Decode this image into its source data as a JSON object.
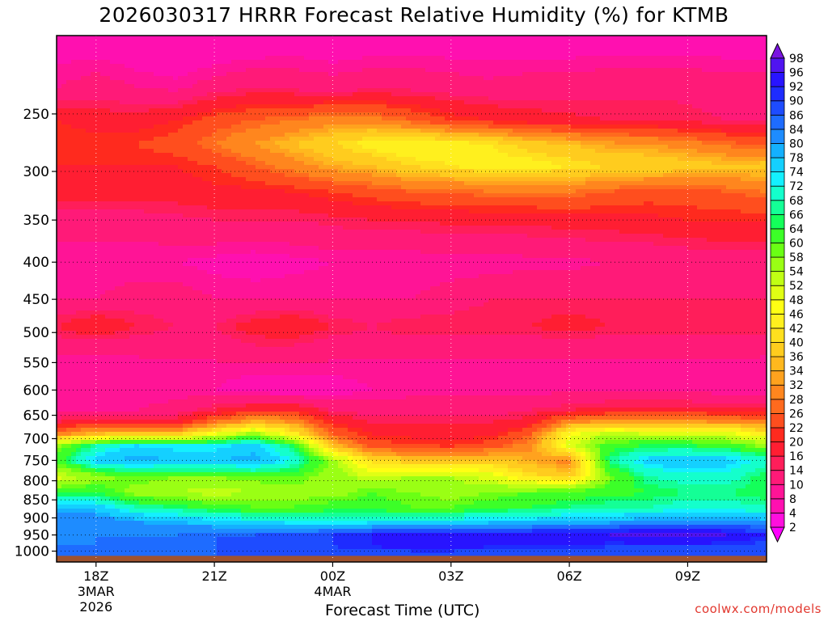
{
  "chart_data": {
    "type": "heatmap",
    "title": "2026030317 HRRR Forecast Relative Humidity (%) for KTMB",
    "xlabel": "Forecast Time (UTC)",
    "ylabel": "",
    "x_ticks": [
      {
        "hour": 18,
        "label": "18Z",
        "sub1": "3MAR",
        "sub2": "2026"
      },
      {
        "hour": 21,
        "label": "21Z",
        "sub1": "",
        "sub2": ""
      },
      {
        "hour": 24,
        "label": "00Z",
        "sub1": "4MAR",
        "sub2": ""
      },
      {
        "hour": 27,
        "label": "03Z",
        "sub1": "",
        "sub2": ""
      },
      {
        "hour": 30,
        "label": "06Z",
        "sub1": "",
        "sub2": ""
      },
      {
        "hour": 33,
        "label": "09Z",
        "sub1": "",
        "sub2": ""
      }
    ],
    "xlim": [
      17,
      35
    ],
    "y_axis": "pressure (hPa), log scale, inverted",
    "ylim": [
      1035,
      195
    ],
    "y_ticks": [
      250,
      300,
      350,
      400,
      450,
      500,
      550,
      600,
      650,
      700,
      750,
      800,
      850,
      900,
      950,
      1000
    ],
    "grid": true,
    "colorbar": {
      "levels": [
        2,
        4,
        8,
        10,
        14,
        16,
        20,
        22,
        26,
        28,
        32,
        34,
        36,
        40,
        42,
        46,
        48,
        52,
        54,
        58,
        60,
        64,
        66,
        68,
        72,
        74,
        78,
        80,
        84,
        86,
        90,
        92,
        96,
        98
      ],
      "colors": [
        "#ff00ff",
        "#ff0fdd",
        "#ff10b0",
        "#ff1496",
        "#ff1a78",
        "#ff1e5a",
        "#ff1e32",
        "#ff2a1e",
        "#ff4e1e",
        "#ff6a1e",
        "#ff861e",
        "#ffa21e",
        "#ffb81e",
        "#ffcc1e",
        "#ffe01e",
        "#fff01e",
        "#ffff14",
        "#e0ff14",
        "#c0ff14",
        "#9aff14",
        "#6aff14",
        "#3cff28",
        "#14ff5a",
        "#14ff96",
        "#14ffcc",
        "#14f0ff",
        "#14d0ff",
        "#14b0ff",
        "#1e8cff",
        "#1e6cff",
        "#1e4cff",
        "#1e2cff",
        "#2814ff",
        "#5014f0",
        "#7a14e0"
      ]
    },
    "profiles": [
      {
        "pressure": 200,
        "rh": [
          6,
          6,
          5,
          4,
          4,
          5,
          6,
          5,
          6,
          6,
          6,
          6,
          6,
          6,
          6,
          6,
          6,
          6,
          6
        ]
      },
      {
        "pressure": 230,
        "rh": [
          10,
          12,
          10,
          9,
          12,
          14,
          13,
          12,
          13,
          13,
          12,
          11,
          12,
          12,
          13,
          13,
          13,
          12,
          12
        ]
      },
      {
        "pressure": 255,
        "rh": [
          20,
          18,
          18,
          20,
          24,
          26,
          28,
          30,
          30,
          26,
          22,
          20,
          18,
          17,
          16,
          16,
          15,
          14,
          14
        ]
      },
      {
        "pressure": 275,
        "rh": [
          22,
          22,
          22,
          24,
          28,
          32,
          36,
          40,
          44,
          46,
          44,
          42,
          38,
          36,
          33,
          32,
          30,
          27,
          25
        ]
      },
      {
        "pressure": 295,
        "rh": [
          20,
          20,
          20,
          20,
          22,
          26,
          30,
          34,
          36,
          40,
          42,
          44,
          44,
          42,
          40,
          40,
          38,
          37,
          38
        ]
      },
      {
        "pressure": 320,
        "rh": [
          18,
          18,
          18,
          18,
          19,
          19,
          20,
          22,
          24,
          26,
          26,
          28,
          28,
          28,
          26,
          24,
          24,
          26,
          28
        ]
      },
      {
        "pressure": 350,
        "rh": [
          12,
          12,
          12,
          13,
          14,
          14,
          14,
          15,
          16,
          16,
          17,
          17,
          17,
          18,
          18,
          19,
          20,
          20,
          20
        ]
      },
      {
        "pressure": 400,
        "rh": [
          8,
          8,
          8,
          8,
          7,
          6,
          7,
          8,
          8,
          8,
          8,
          8,
          9,
          9,
          10,
          10,
          11,
          12,
          12
        ]
      },
      {
        "pressure": 450,
        "rh": [
          10,
          10,
          12,
          12,
          10,
          10,
          10,
          10,
          10,
          10,
          12,
          14,
          14,
          14,
          14,
          14,
          14,
          14,
          14
        ]
      },
      {
        "pressure": 490,
        "rh": [
          16,
          20,
          16,
          14,
          14,
          18,
          20,
          16,
          14,
          16,
          16,
          16,
          16,
          18,
          16,
          16,
          16,
          16,
          16
        ]
      },
      {
        "pressure": 520,
        "rh": [
          12,
          12,
          12,
          12,
          12,
          14,
          14,
          12,
          12,
          12,
          12,
          12,
          12,
          12,
          12,
          12,
          12,
          12,
          12
        ]
      },
      {
        "pressure": 560,
        "rh": [
          8,
          8,
          8,
          9,
          9,
          9,
          9,
          9,
          9,
          9,
          9,
          9,
          9,
          9,
          9,
          9,
          9,
          9,
          8
        ]
      },
      {
        "pressure": 600,
        "rh": [
          9,
          9,
          8,
          8,
          8,
          6,
          5,
          6,
          8,
          9,
          9,
          9,
          9,
          9,
          9,
          9,
          9,
          8,
          8
        ]
      },
      {
        "pressure": 640,
        "rh": [
          10,
          10,
          10,
          12,
          16,
          20,
          20,
          14,
          12,
          12,
          12,
          12,
          14,
          16,
          18,
          18,
          18,
          18,
          18
        ]
      },
      {
        "pressure": 665,
        "rh": [
          16,
          20,
          18,
          18,
          28,
          36,
          32,
          20,
          16,
          16,
          16,
          16,
          18,
          32,
          34,
          34,
          34,
          32,
          30
        ]
      },
      {
        "pressure": 690,
        "rh": [
          30,
          36,
          38,
          38,
          48,
          56,
          44,
          26,
          20,
          19,
          18,
          19,
          26,
          46,
          54,
          52,
          52,
          50,
          44
        ]
      },
      {
        "pressure": 715,
        "rh": [
          56,
          68,
          74,
          72,
          72,
          76,
          64,
          36,
          24,
          22,
          21,
          24,
          30,
          50,
          62,
          64,
          64,
          62,
          56
        ]
      },
      {
        "pressure": 750,
        "rh": [
          62,
          76,
          80,
          78,
          78,
          80,
          72,
          56,
          40,
          38,
          38,
          38,
          34,
          30,
          66,
          76,
          78,
          76,
          70
        ]
      },
      {
        "pressure": 790,
        "rh": [
          50,
          56,
          60,
          58,
          58,
          60,
          60,
          56,
          52,
          54,
          54,
          50,
          42,
          38,
          58,
          68,
          70,
          70,
          64
        ]
      },
      {
        "pressure": 830,
        "rh": [
          62,
          64,
          56,
          54,
          52,
          54,
          56,
          56,
          60,
          58,
          56,
          58,
          60,
          62,
          62,
          64,
          66,
          66,
          64
        ]
      },
      {
        "pressure": 870,
        "rh": [
          78,
          76,
          68,
          66,
          62,
          60,
          60,
          62,
          62,
          60,
          60,
          62,
          64,
          66,
          68,
          68,
          70,
          70,
          68
        ]
      },
      {
        "pressure": 910,
        "rh": [
          84,
          84,
          80,
          78,
          76,
          74,
          72,
          72,
          72,
          74,
          74,
          76,
          76,
          78,
          78,
          82,
          82,
          82,
          80
        ]
      },
      {
        "pressure": 950,
        "rh": [
          82,
          84,
          84,
          84,
          86,
          86,
          88,
          90,
          92,
          94,
          96,
          96,
          96,
          96,
          96,
          98,
          98,
          96,
          92
        ]
      },
      {
        "pressure": 985,
        "rh": [
          84,
          84,
          84,
          84,
          86,
          86,
          88,
          90,
          92,
          94,
          94,
          92,
          92,
          92,
          90,
          90,
          90,
          90,
          88
        ]
      },
      {
        "pressure": 1015,
        "rh": [
          86,
          86,
          86,
          86,
          86,
          86,
          86,
          86,
          86,
          86,
          86,
          86,
          86,
          86,
          86,
          86,
          86,
          86,
          86
        ]
      }
    ],
    "ground_color": "#a0522d",
    "ground_pressure": 1015
  },
  "credit": "coolwx.com/models"
}
